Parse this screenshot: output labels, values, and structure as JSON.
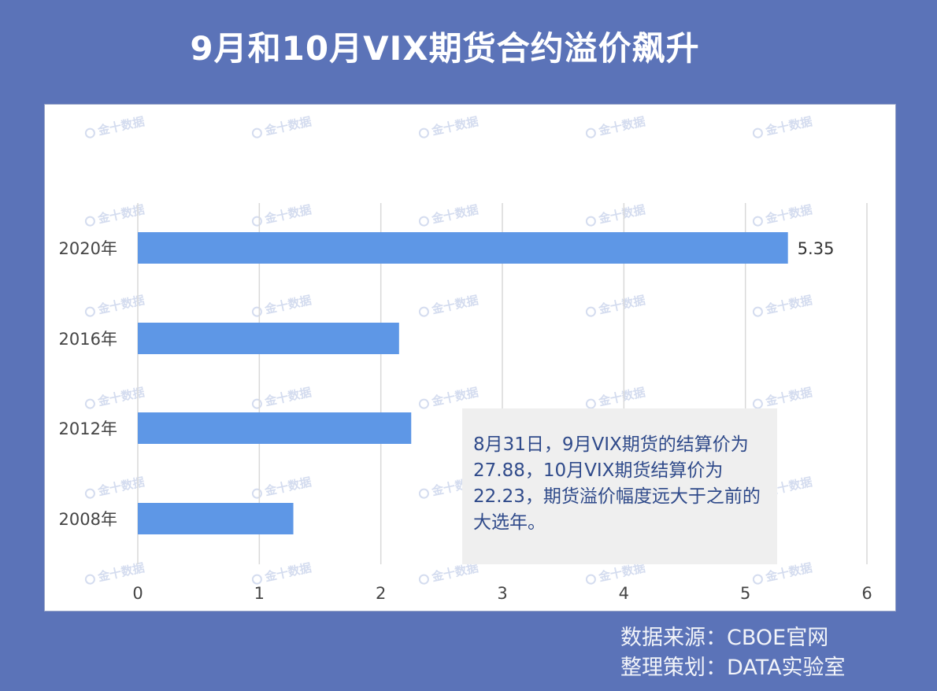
{
  "title": "9月和10月VIX期货合约溢价飙升",
  "annotation": "8月31日，9月VIX期货的结算价为27.88，10月VIX期货结算价为22.23，期货溢价幅度远大于之前的大选年。",
  "credits": {
    "source": "数据来源：CBOE官网",
    "editor": "整理策划：DATA实验室"
  },
  "watermark_text": "金十数据",
  "colors": {
    "background": "#5b73b8",
    "bar": "#5e97e6",
    "annotation_text": "#2f4a8a"
  },
  "chart_data": {
    "type": "bar",
    "orientation": "horizontal",
    "categories": [
      "2020年",
      "2016年",
      "2012年",
      "2008年"
    ],
    "values": [
      5.35,
      2.15,
      2.25,
      1.28
    ],
    "data_labels": [
      "5.35",
      "",
      "",
      ""
    ],
    "xlim": [
      0,
      6
    ],
    "xticks": [
      "0",
      "1",
      "2",
      "3",
      "4",
      "5",
      "6"
    ],
    "grid": "vertical",
    "legend": "none"
  }
}
